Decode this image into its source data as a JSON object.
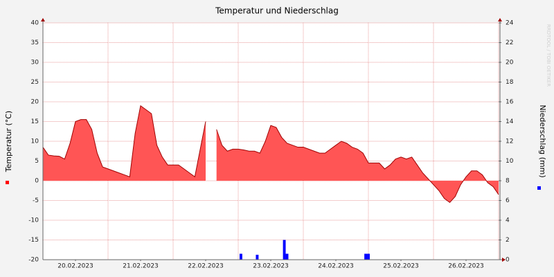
{
  "chart_data": {
    "type": "area",
    "title": "Temperatur und Niederschlag",
    "ylabel": "Temperatur (°C)",
    "y2label": "Niederschlag (mm)",
    "watermark": "RRDTOOL / TOBI OETIKER",
    "xlim": [
      0,
      168
    ],
    "xticks": [
      {
        "value": 12,
        "label": "20.02.2023"
      },
      {
        "value": 36,
        "label": "21.02.2023"
      },
      {
        "value": 60,
        "label": "22.02.2023"
      },
      {
        "value": 84,
        "label": "23.02.2023"
      },
      {
        "value": 108,
        "label": "24.02.2023"
      },
      {
        "value": 132,
        "label": "25.02.2023"
      },
      {
        "value": 156,
        "label": "26.02.2023"
      }
    ],
    "xgrid": [
      0,
      24,
      48,
      72,
      96,
      120,
      144,
      168
    ],
    "ylim": [
      -20,
      40
    ],
    "yticks": [
      -20,
      -15,
      -10,
      -5,
      0,
      5,
      10,
      15,
      20,
      25,
      30,
      35,
      40
    ],
    "y2lim": [
      0,
      24
    ],
    "y2ticks": [
      0,
      2,
      4,
      6,
      8,
      10,
      12,
      14,
      16,
      18,
      20,
      22,
      24
    ],
    "grid": true,
    "series": [
      {
        "type": "area",
        "color": "#ff5555",
        "line_color": "#a00000",
        "x": [
          0,
          2,
          4,
          6,
          8,
          10,
          12,
          14,
          16,
          18,
          20,
          22,
          24,
          26,
          28,
          30,
          32,
          34,
          36,
          38,
          40,
          42,
          44,
          46,
          48,
          50,
          52,
          54,
          56,
          58,
          60,
          62,
          64,
          66,
          68,
          70,
          72,
          74,
          76,
          78,
          80,
          82,
          84,
          86,
          88,
          90,
          92,
          94,
          96,
          98,
          100,
          102,
          104,
          106,
          108,
          110,
          112,
          114,
          116,
          118,
          120,
          122,
          124,
          126,
          128,
          130,
          132,
          134,
          136,
          138,
          140,
          142,
          144,
          146,
          148,
          150,
          152,
          154,
          156,
          158,
          160,
          162,
          164,
          166,
          168
        ],
        "values": [
          8.5,
          6.5,
          6.3,
          6.2,
          5.5,
          9.5,
          15,
          15.5,
          15.5,
          13,
          7,
          3.5,
          3,
          2.5,
          2,
          1.5,
          1,
          12,
          19,
          18,
          17,
          9,
          6,
          4,
          4,
          4,
          3,
          2,
          1,
          8,
          15,
          null,
          13,
          9,
          7.5,
          8,
          8,
          7.8,
          7.5,
          7.5,
          7,
          10,
          14,
          13.5,
          11,
          9.5,
          9,
          8.5,
          8.5,
          8,
          7.5,
          7,
          7,
          8,
          9,
          10,
          9.5,
          8.5,
          8,
          7,
          4.5,
          4.5,
          4.5,
          3,
          4,
          5.5,
          6,
          5.5,
          6,
          4,
          2,
          0.5,
          -1,
          -2.5,
          -4.5,
          -5.5,
          -4,
          -1,
          1,
          2.5,
          2.5,
          1.5,
          -0.5,
          -1.5,
          -3.5
        ]
      },
      {
        "type": "bar",
        "axis": "y2",
        "color": "#0000ff",
        "x": [
          73,
          79,
          89,
          90,
          119,
          120
        ],
        "values": [
          0.6,
          0.5,
          2,
          0.6,
          0.6,
          0.6
        ]
      }
    ]
  }
}
